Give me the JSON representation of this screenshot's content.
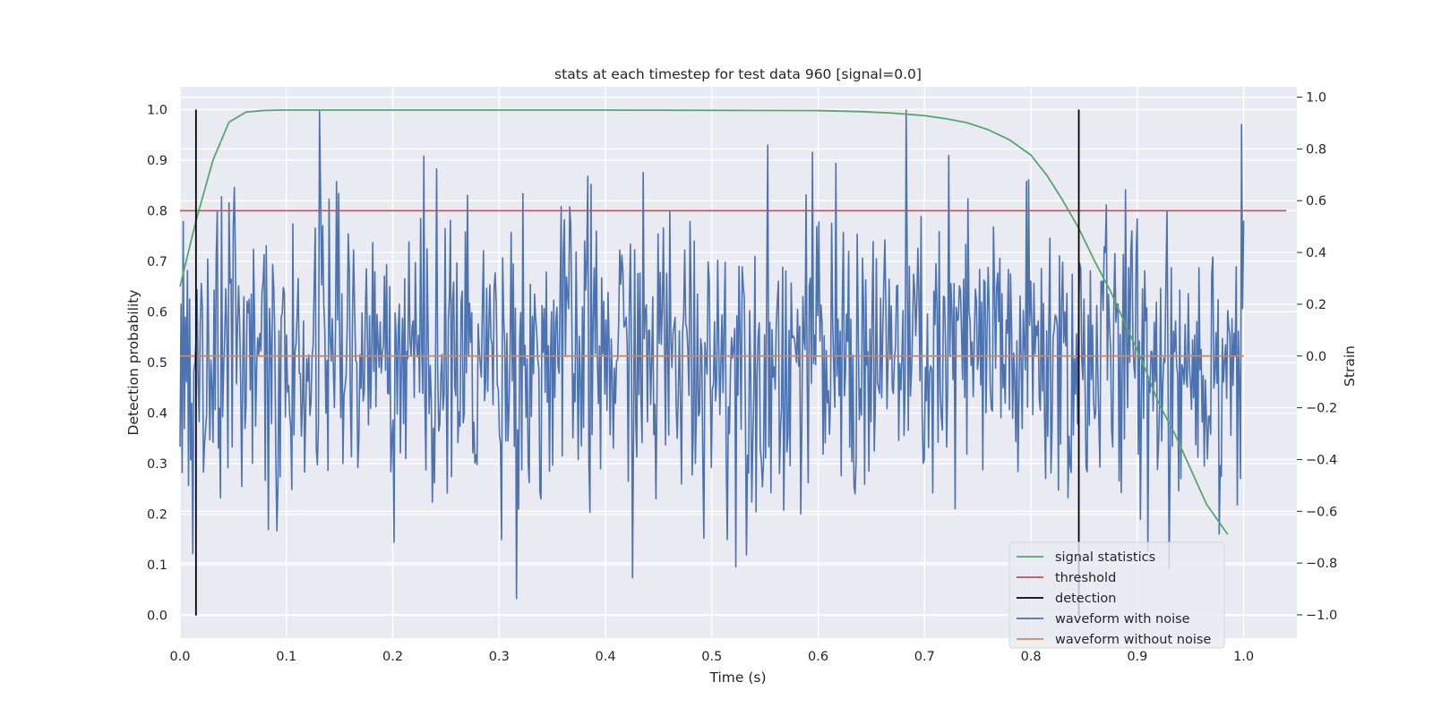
{
  "chart_data": {
    "type": "line",
    "title": "stats at each timestep for test data 960 [signal=0.0]",
    "xlabel": "Time (s)",
    "ylabel_left": "Detection probability",
    "ylabel_right": "Strain",
    "xlim": [
      0.0,
      1.05
    ],
    "ylim_left": [
      -0.045,
      1.045
    ],
    "ylim_right": [
      -1.09,
      1.04
    ],
    "xticks": [
      0.0,
      0.1,
      0.2,
      0.3,
      0.4,
      0.5,
      0.6,
      0.7,
      0.8,
      0.9,
      1.0
    ],
    "xtick_labels": [
      "0.0",
      "0.1",
      "0.2",
      "0.3",
      "0.4",
      "0.5",
      "0.6",
      "0.7",
      "0.8",
      "0.9",
      "1.0"
    ],
    "yticks_left": [
      0.0,
      0.1,
      0.2,
      0.3,
      0.4,
      0.5,
      0.6,
      0.7,
      0.8,
      0.9,
      1.0
    ],
    "ytick_labels_left": [
      "0.0",
      "0.1",
      "0.2",
      "0.3",
      "0.4",
      "0.5",
      "0.6",
      "0.7",
      "0.8",
      "0.9",
      "1.0"
    ],
    "yticks_right": [
      -1.0,
      -0.8,
      -0.6,
      -0.4,
      -0.2,
      0.0,
      0.2,
      0.4,
      0.6,
      0.8,
      1.0
    ],
    "ytick_labels_right": [
      "−1.0",
      "−0.8",
      "−0.6",
      "−0.4",
      "−0.2",
      "0.0",
      "0.2",
      "0.4",
      "0.6",
      "0.8",
      "1.0"
    ],
    "grid": true,
    "legend_position": "lower-right",
    "series": [
      {
        "name": "signal statistics",
        "axis": "left",
        "color": "#55a868",
        "x": [
          0.0,
          0.015,
          0.031,
          0.046,
          0.062,
          0.077,
          0.092,
          0.2,
          0.4,
          0.6,
          0.64,
          0.67,
          0.7,
          0.72,
          0.74,
          0.76,
          0.78,
          0.8,
          0.815,
          0.83,
          0.845,
          0.86,
          0.875,
          0.89,
          0.905,
          0.92,
          0.935,
          0.95,
          0.965,
          0.985
        ],
        "y": [
          0.65,
          0.78,
          0.9,
          0.975,
          0.995,
          0.998,
          0.999,
          0.999,
          0.999,
          0.998,
          0.996,
          0.993,
          0.988,
          0.982,
          0.974,
          0.96,
          0.94,
          0.91,
          0.87,
          0.82,
          0.765,
          0.7,
          0.64,
          0.57,
          0.5,
          0.42,
          0.36,
          0.29,
          0.22,
          0.16
        ]
      },
      {
        "name": "threshold",
        "axis": "left",
        "color": "#c44e52",
        "x": [
          0.0,
          1.04
        ],
        "y": [
          0.8,
          0.8
        ]
      },
      {
        "name": "detection",
        "axis": "left",
        "color": "#000000",
        "segments": [
          {
            "x": 0.015,
            "y": [
              0.0,
              1.0
            ]
          },
          {
            "x": 0.845,
            "y": [
              0.0,
              1.0
            ]
          }
        ]
      },
      {
        "name": "waveform with noise",
        "axis": "right",
        "color": "#4c72b0",
        "x_range": [
          0.0,
          1.0
        ],
        "n_points": 1000,
        "min": -1.0,
        "max": 1.0,
        "y_sample_start": [
          -0.35,
          0.2,
          -0.45,
          0.52,
          -0.28,
          0.15,
          -0.1,
          0.33,
          -0.5,
          0.22
        ]
      },
      {
        "name": "waveform without noise",
        "axis": "right",
        "color": "#dd8452",
        "x": [
          0.0,
          1.0
        ],
        "y": [
          0.0,
          0.0
        ]
      }
    ]
  }
}
